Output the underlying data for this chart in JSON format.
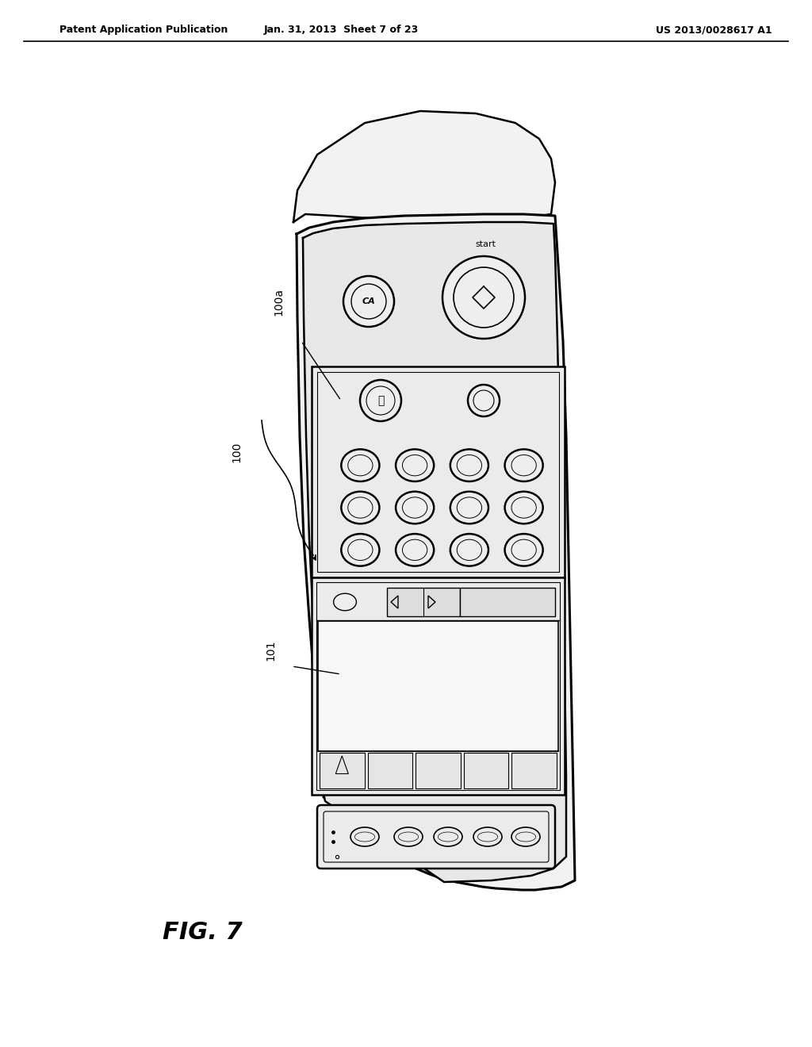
{
  "bg_color": "#ffffff",
  "line_color": "#000000",
  "header_left": "Patent Application Publication",
  "header_mid": "Jan. 31, 2013  Sheet 7 of 23",
  "header_right": "US 2013/0028617 A1",
  "fig_label": "FIG. 7",
  "device_fill": "#f2f2f2",
  "device_fill2": "#e8e8e8",
  "panel_fill": "#ebebeb",
  "screen_fill": "#f8f8f8",
  "dark_fill": "#d5d5d5"
}
